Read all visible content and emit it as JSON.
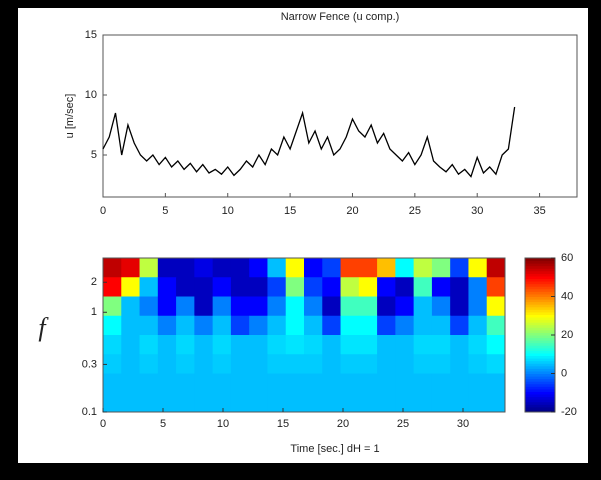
{
  "chart_data": [
    {
      "type": "line",
      "title": "Narrow Fence (u comp.)",
      "y_label": "u [m/sec]",
      "xlim": [
        0,
        38
      ],
      "xticks": [
        0,
        5,
        10,
        15,
        20,
        25,
        30,
        35
      ],
      "ylim": [
        1.5,
        15
      ],
      "yticks": [
        5,
        10,
        15
      ],
      "x": [
        0,
        0.5,
        1,
        1.5,
        2,
        2.5,
        3,
        3.5,
        4,
        4.5,
        5,
        5.5,
        6,
        6.5,
        7,
        7.5,
        8,
        8.5,
        9,
        9.5,
        10,
        10.5,
        11,
        11.5,
        12,
        12.5,
        13,
        13.5,
        14,
        14.5,
        15,
        15.5,
        16,
        16.5,
        17,
        17.5,
        18,
        18.5,
        19,
        19.5,
        20,
        20.5,
        21,
        21.5,
        22,
        22.5,
        23,
        23.5,
        24,
        24.5,
        25,
        25.5,
        26,
        26.5,
        27,
        27.5,
        28,
        28.5,
        29,
        29.5,
        30,
        30.5,
        31,
        31.5,
        32,
        32.5,
        33
      ],
      "series": [
        {
          "name": "u",
          "color": "#000000",
          "values": [
            5.5,
            6.5,
            8.5,
            5,
            7.5,
            6,
            5,
            4.5,
            5,
            4.2,
            4.8,
            4,
            4.5,
            3.8,
            4.3,
            3.6,
            4.2,
            3.5,
            3.8,
            3.4,
            4,
            3.3,
            3.8,
            4.5,
            4,
            5,
            4.2,
            5.5,
            5,
            6.5,
            5.5,
            7,
            8.5,
            6,
            7,
            5.5,
            6.5,
            5,
            5.5,
            6.5,
            8,
            7,
            6.5,
            7.5,
            6,
            6.8,
            5.5,
            5,
            4.5,
            5.2,
            4.2,
            5,
            6.5,
            4.5,
            4,
            3.6,
            4.2,
            3.4,
            3.8,
            3.2,
            4.8,
            3.5,
            4,
            3.4,
            5,
            5.5,
            9
          ]
        }
      ]
    },
    {
      "type": "heatmap",
      "x_label": "Time [sec.] dH = 1",
      "y_label": "f",
      "xlim": [
        0,
        33.5
      ],
      "xticks": [
        0,
        5,
        10,
        15,
        20,
        25,
        30
      ],
      "ylim": [
        0.1,
        3.5
      ],
      "log_y": true,
      "yticks": [
        0.1,
        0.3,
        1,
        2
      ],
      "clim": [
        -20,
        60
      ],
      "cticks": [
        -20,
        0,
        20,
        40,
        60
      ],
      "colormap": "jet",
      "z": [
        [
          55,
          52,
          25,
          -15,
          -15,
          -12,
          -15,
          -15,
          -10,
          5,
          30,
          -10,
          -5,
          45,
          45,
          35,
          10,
          25,
          20,
          -5,
          30,
          55
        ],
        [
          50,
          30,
          5,
          -10,
          -15,
          -15,
          -10,
          -15,
          -15,
          -5,
          20,
          -5,
          -10,
          25,
          30,
          -10,
          -15,
          15,
          -10,
          -15,
          0,
          45
        ],
        [
          20,
          5,
          0,
          -10,
          0,
          -15,
          0,
          -10,
          -10,
          0,
          10,
          0,
          -15,
          15,
          15,
          -15,
          -10,
          5,
          0,
          -15,
          0,
          30
        ],
        [
          10,
          5,
          5,
          0,
          5,
          0,
          5,
          -5,
          0,
          5,
          10,
          5,
          -5,
          10,
          10,
          -5,
          0,
          5,
          5,
          -5,
          5,
          15
        ],
        [
          7,
          5,
          7,
          5,
          7,
          5,
          7,
          5,
          5,
          7,
          8,
          7,
          5,
          8,
          8,
          5,
          5,
          7,
          7,
          5,
          7,
          10
        ],
        [
          6,
          5,
          6,
          5,
          6,
          5,
          6,
          5,
          5,
          6,
          6,
          6,
          5,
          6,
          6,
          5,
          5,
          6,
          6,
          5,
          6,
          7
        ],
        [
          5,
          5,
          5,
          5,
          5,
          5,
          5,
          5,
          5,
          5,
          5,
          5,
          5,
          5,
          5,
          5,
          5,
          5,
          5,
          5,
          5,
          5
        ],
        [
          5,
          5,
          5,
          5,
          5,
          5,
          5,
          5,
          5,
          5,
          5,
          5,
          5,
          5,
          5,
          5,
          5,
          5,
          5,
          5,
          5,
          5
        ]
      ]
    }
  ]
}
